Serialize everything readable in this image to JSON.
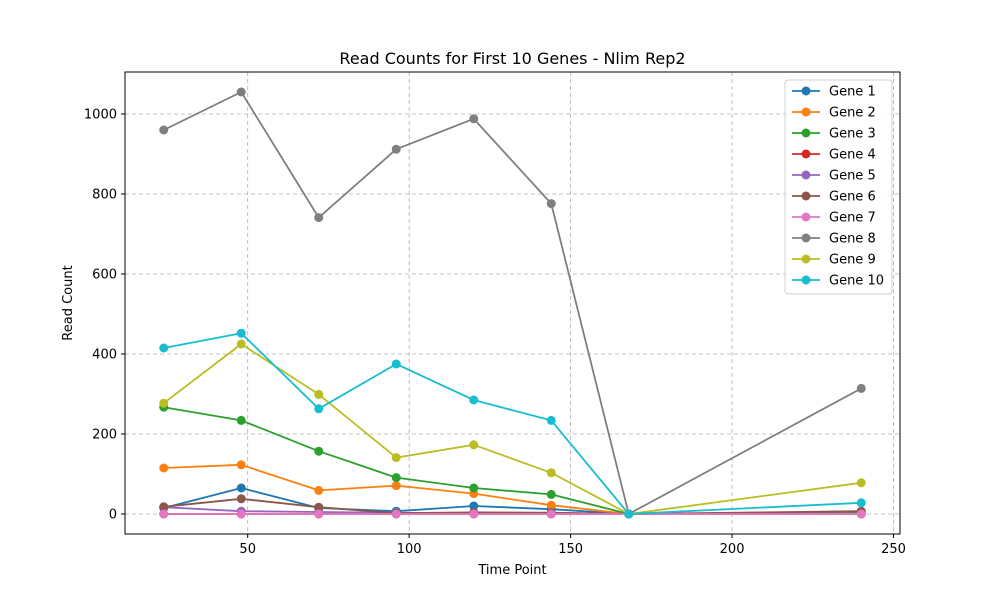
{
  "chart_data": {
    "type": "line",
    "title": "Read Counts for First 10 Genes - Nlim Rep2",
    "xlabel": "Time Point",
    "ylabel": "Read Count",
    "x": [
      24,
      48,
      72,
      96,
      120,
      144,
      168,
      240
    ],
    "xlim": [
      12,
      252
    ],
    "ylim": [
      -50,
      1105
    ],
    "xticks": [
      50,
      100,
      150,
      200,
      250
    ],
    "yticks": [
      0,
      200,
      400,
      600,
      800,
      1000
    ],
    "grid": true,
    "legend_position": "top-right",
    "series": [
      {
        "name": "Gene 1",
        "color": "#1f77b4",
        "values": [
          15,
          65,
          15,
          7,
          20,
          12,
          0,
          3
        ]
      },
      {
        "name": "Gene 2",
        "color": "#ff7f0e",
        "values": [
          115,
          123,
          59,
          71,
          51,
          22,
          0,
          5
        ]
      },
      {
        "name": "Gene 3",
        "color": "#2ca02c",
        "values": [
          267,
          234,
          157,
          91,
          65,
          49,
          0,
          5
        ]
      },
      {
        "name": "Gene 4",
        "color": "#d62728",
        "values": [
          0,
          0,
          0,
          0,
          0,
          0,
          0,
          0
        ]
      },
      {
        "name": "Gene 5",
        "color": "#9467bd",
        "values": [
          17,
          7,
          5,
          3,
          2,
          3,
          0,
          1
        ]
      },
      {
        "name": "Gene 6",
        "color": "#8c564b",
        "values": [
          18,
          38,
          17,
          2,
          4,
          3,
          0,
          7
        ]
      },
      {
        "name": "Gene 7",
        "color": "#e377c2",
        "values": [
          0,
          0,
          0,
          0,
          0,
          0,
          0,
          0
        ]
      },
      {
        "name": "Gene 8",
        "color": "#7f7f7f",
        "values": [
          960,
          1055,
          741,
          912,
          988,
          776,
          0,
          314
        ]
      },
      {
        "name": "Gene 9",
        "color": "#bcbd22",
        "values": [
          277,
          425,
          299,
          141,
          173,
          103,
          0,
          78
        ]
      },
      {
        "name": "Gene 10",
        "color": "#17becf",
        "values": [
          415,
          452,
          263,
          375,
          285,
          234,
          0,
          28
        ]
      }
    ]
  }
}
